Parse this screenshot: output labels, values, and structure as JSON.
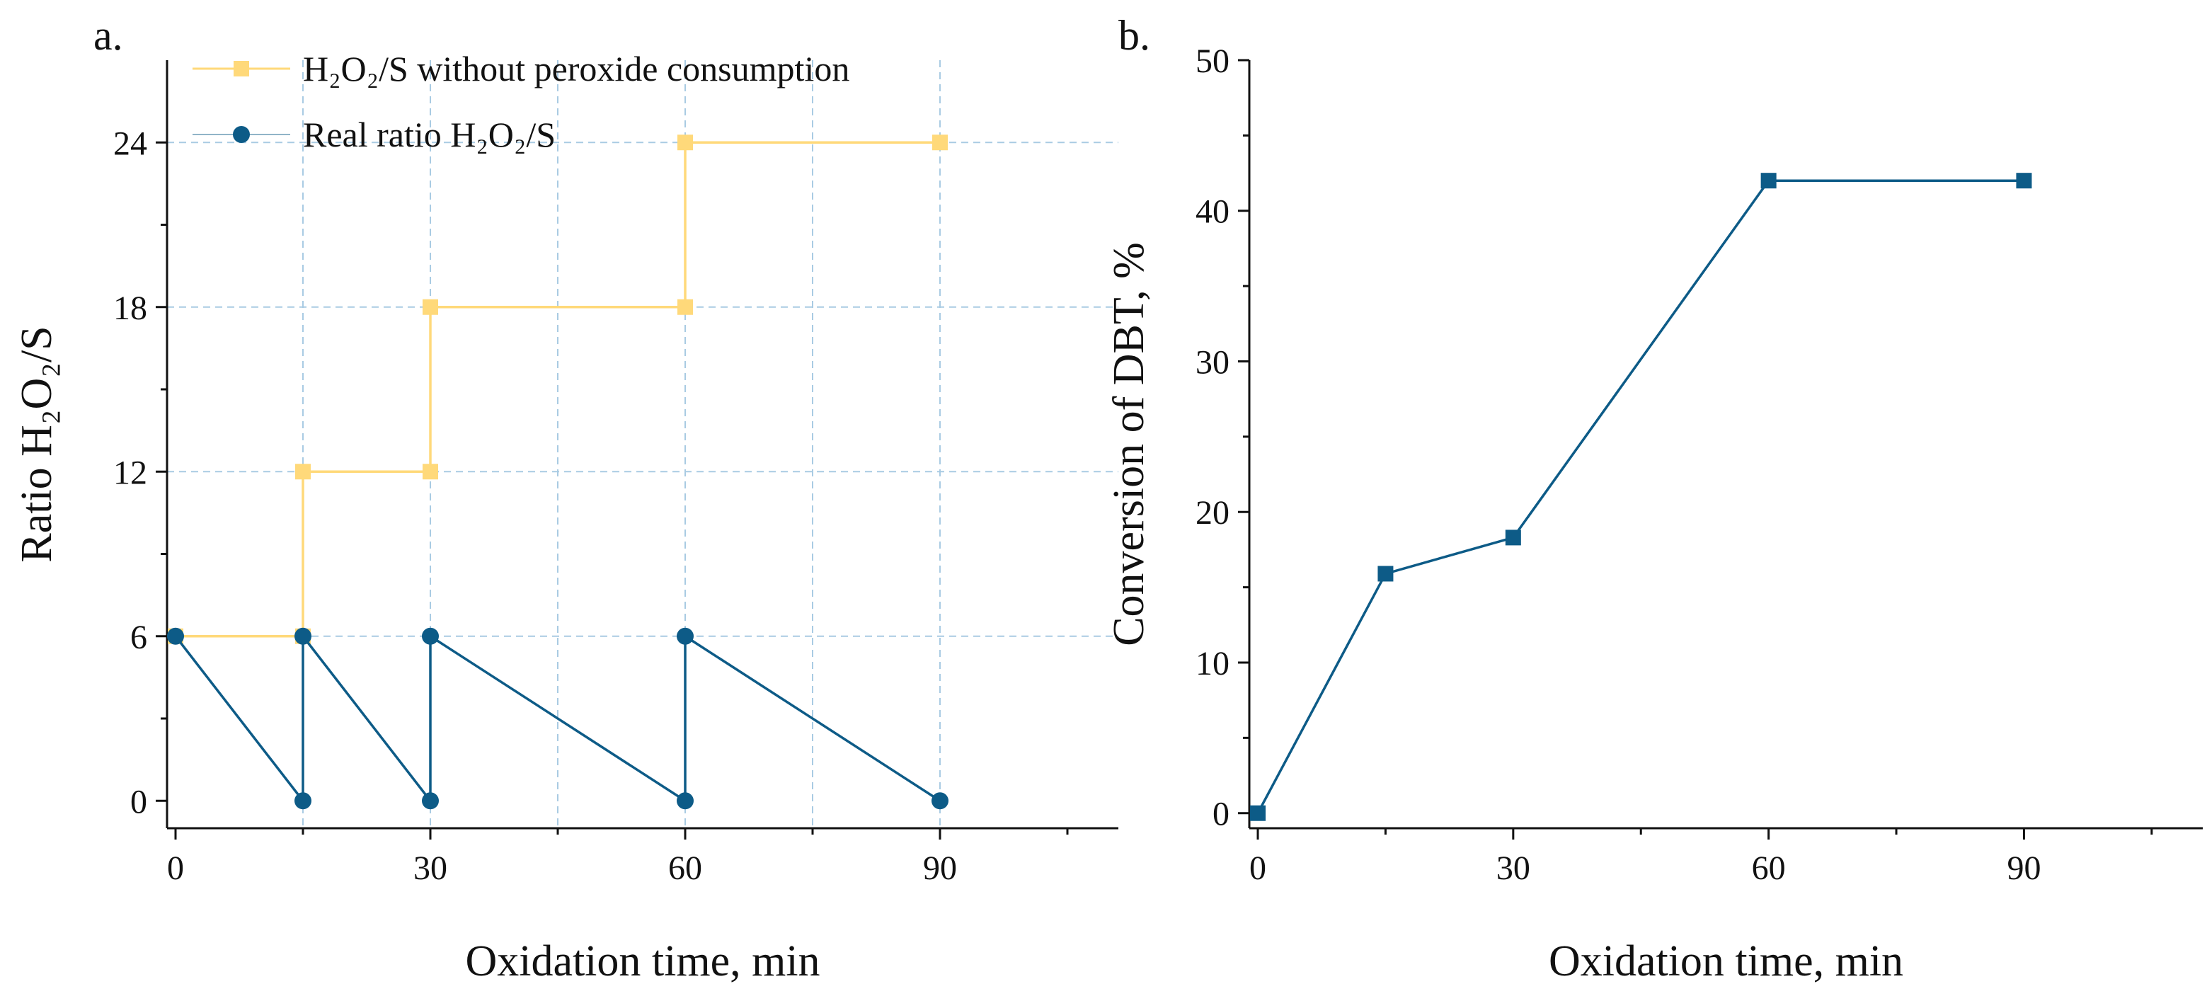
{
  "colors": {
    "yellow_series": "#FFD97A",
    "blue_series": "#0D5B87",
    "grid": "#A9CBE3",
    "axis": "#111111"
  },
  "chart_data": [
    {
      "panel_label": "a.",
      "type": "line",
      "title": "",
      "xlabel": "Oxidation time, min",
      "ylabel": "Ratio H₂O₂/S",
      "xlim": [
        -1,
        111
      ],
      "ylim": [
        -1,
        27
      ],
      "xticks": [
        0,
        30,
        60,
        90
      ],
      "xtick_labels": [
        "0",
        "30",
        "60",
        "90"
      ],
      "x_minor_ticks": [
        15,
        45,
        75,
        105
      ],
      "yticks": [
        0,
        6,
        12,
        18,
        24
      ],
      "ytick_labels": [
        "0",
        "6",
        "12",
        "18",
        "24"
      ],
      "y_minor_ticks": [
        3,
        9,
        15,
        21
      ],
      "grid": true,
      "grid_x": [
        15,
        30,
        45,
        60,
        75,
        90
      ],
      "grid_y": [
        6,
        12,
        18,
        24
      ],
      "legend_position": "top-left",
      "series": [
        {
          "name": "H₂O₂/S without peroxide consumption",
          "marker": "square",
          "color": "#FFD97A",
          "x": [
            0,
            15,
            15,
            30,
            30,
            60,
            60,
            90
          ],
          "y": [
            6,
            6,
            12,
            12,
            18,
            18,
            24,
            24
          ]
        },
        {
          "name": "Real ratio H₂O₂/S",
          "marker": "circle",
          "color": "#0D5B87",
          "x": [
            0,
            15,
            15,
            30,
            30,
            60,
            60,
            90
          ],
          "y": [
            6,
            0,
            6,
            0,
            6,
            0,
            6,
            0
          ]
        }
      ]
    },
    {
      "panel_label": "b.",
      "type": "line",
      "title": "",
      "xlabel": "Oxidation time, min",
      "ylabel": "Conversion of DBT, %",
      "xlim": [
        -1,
        111
      ],
      "ylim": [
        -1,
        50
      ],
      "xticks": [
        0,
        30,
        60,
        90
      ],
      "xtick_labels": [
        "0",
        "30",
        "60",
        "90"
      ],
      "x_minor_ticks": [
        15,
        45,
        75,
        105
      ],
      "yticks": [
        0,
        10,
        20,
        30,
        40,
        50
      ],
      "ytick_labels": [
        "0",
        "10",
        "20",
        "30",
        "40",
        "50"
      ],
      "y_minor_ticks": [
        5,
        15,
        25,
        35,
        45
      ],
      "grid": false,
      "series": [
        {
          "name": "Conversion of DBT",
          "marker": "square",
          "color": "#0D5B87",
          "x": [
            0,
            15,
            30,
            60,
            90
          ],
          "y": [
            0,
            15.9,
            18.3,
            42,
            42
          ]
        }
      ]
    }
  ]
}
